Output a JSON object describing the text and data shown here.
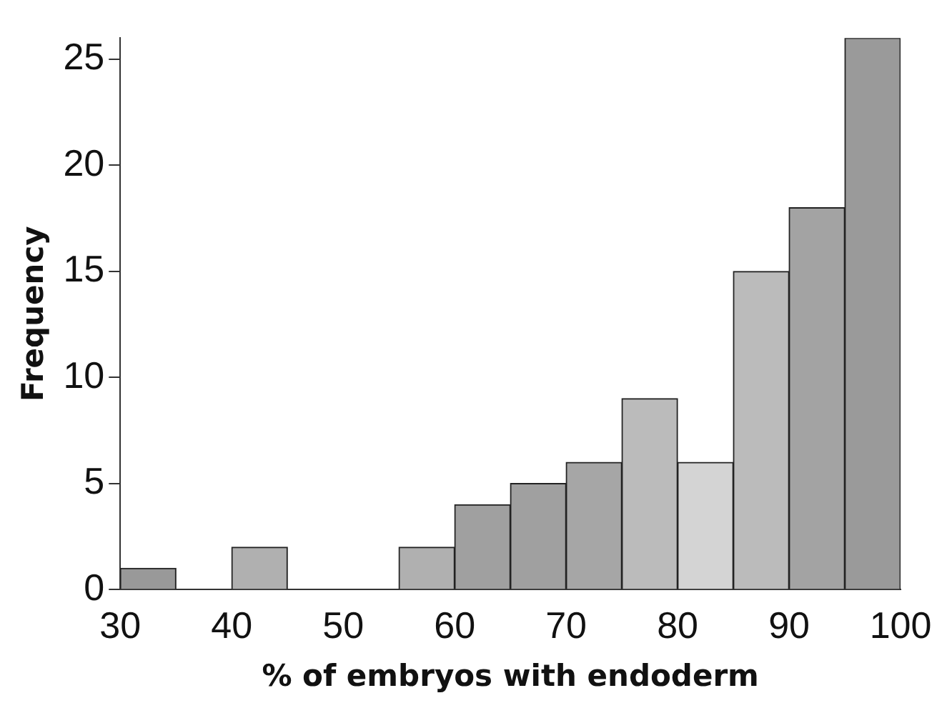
{
  "chart_data": {
    "type": "histogram",
    "xlabel": "% of embryos with endoderm",
    "ylabel": "Frequency",
    "bins": [
      30,
      35,
      40,
      45,
      50,
      55,
      60,
      65,
      70,
      75,
      80,
      85,
      90,
      95,
      100
    ],
    "values": [
      1,
      0,
      2,
      0,
      0,
      2,
      4,
      5,
      6,
      9,
      6,
      15,
      18,
      26
    ],
    "colors": [
      "#999999",
      "#aaaaaa",
      "#b0b0b0",
      "#aaaaaa",
      "#aaaaaa",
      "#b0b0b0",
      "#a0a0a0",
      "#a0a0a0",
      "#a6a6a6",
      "#bbbbbb",
      "#d4d4d4",
      "#bbbbbb",
      "#a3a3a3",
      "#9a9a9a"
    ],
    "xlim": [
      30,
      100
    ],
    "xticks": [
      30,
      40,
      50,
      60,
      70,
      80,
      90,
      100
    ],
    "ylim": [
      0,
      26
    ],
    "yticks": [
      0,
      5,
      10,
      15,
      20,
      25
    ],
    "grid": false,
    "legend": false
  }
}
